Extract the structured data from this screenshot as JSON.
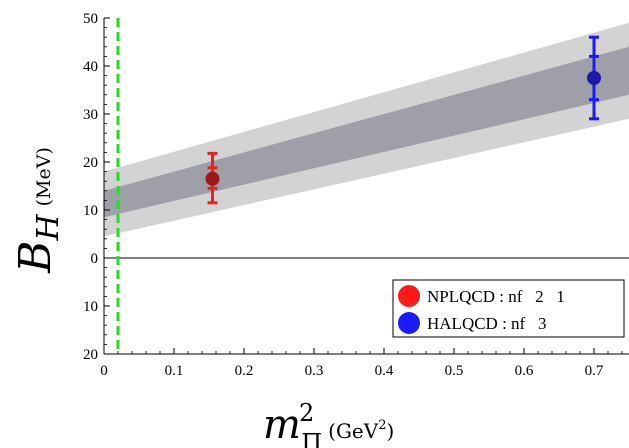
{
  "chart_data": {
    "type": "scatter",
    "title": "",
    "xlabel_main": "m",
    "xlabel_sup": "2",
    "xlabel_sub": "Π",
    "xlabel_unit_open": "(GeV",
    "xlabel_unit_sup": "2",
    "xlabel_unit_close": ")",
    "ylabel_main": "B",
    "ylabel_sub": "H",
    "ylabel_unit": "(MeV)",
    "xlim": [
      0,
      0.75
    ],
    "ylim": [
      -20,
      50
    ],
    "xticks": [
      {
        "v": 0,
        "label": "0"
      },
      {
        "v": 0.1,
        "label": "0.1"
      },
      {
        "v": 0.2,
        "label": "0.2"
      },
      {
        "v": 0.3,
        "label": "0.3"
      },
      {
        "v": 0.4,
        "label": "0.4"
      },
      {
        "v": 0.5,
        "label": "0.5"
      },
      {
        "v": 0.6,
        "label": "0.6"
      },
      {
        "v": 0.7,
        "label": "0.7"
      }
    ],
    "yticks": [
      {
        "v": -20,
        "label": "20"
      },
      {
        "v": -10,
        "label": "10"
      },
      {
        "v": 0,
        "label": "0"
      },
      {
        "v": 10,
        "label": "10"
      },
      {
        "v": 20,
        "label": "20"
      },
      {
        "v": 30,
        "label": "30"
      },
      {
        "v": 40,
        "label": "40"
      },
      {
        "v": 50,
        "label": "50"
      }
    ],
    "vertical_line_x": 0.02,
    "band_outer": {
      "x": [
        0,
        0.75
      ],
      "lower": [
        4.5,
        29
      ],
      "upper": [
        18,
        49
      ]
    },
    "band_inner": {
      "x": [
        0,
        0.75
      ],
      "lower": [
        8.5,
        34
      ],
      "upper": [
        14,
        44
      ]
    },
    "series": [
      {
        "name": "NPLQCD : nf   2   1",
        "color": "#e8231f",
        "point_color": "#a01515",
        "x": 0.155,
        "y": 16.5,
        "err_inner": [
          14.5,
          18.8
        ],
        "err_outer": [
          11.5,
          21.8
        ]
      },
      {
        "name": "HALQCD : nf   3",
        "color": "#1a1aff",
        "point_color": "#1a1aa8",
        "x": 0.7,
        "y": 37.5,
        "err_inner": [
          33,
          42
        ],
        "err_outer": [
          29,
          46
        ]
      }
    ],
    "legend_position": "bottom-right",
    "colors": {
      "outer_band": "#d3d3d3",
      "inner_band": "#9f9fa8",
      "vline": "#22dd22",
      "nplqcd_bar": "#e8231f",
      "halqcd_bar": "#1a1aff"
    }
  }
}
